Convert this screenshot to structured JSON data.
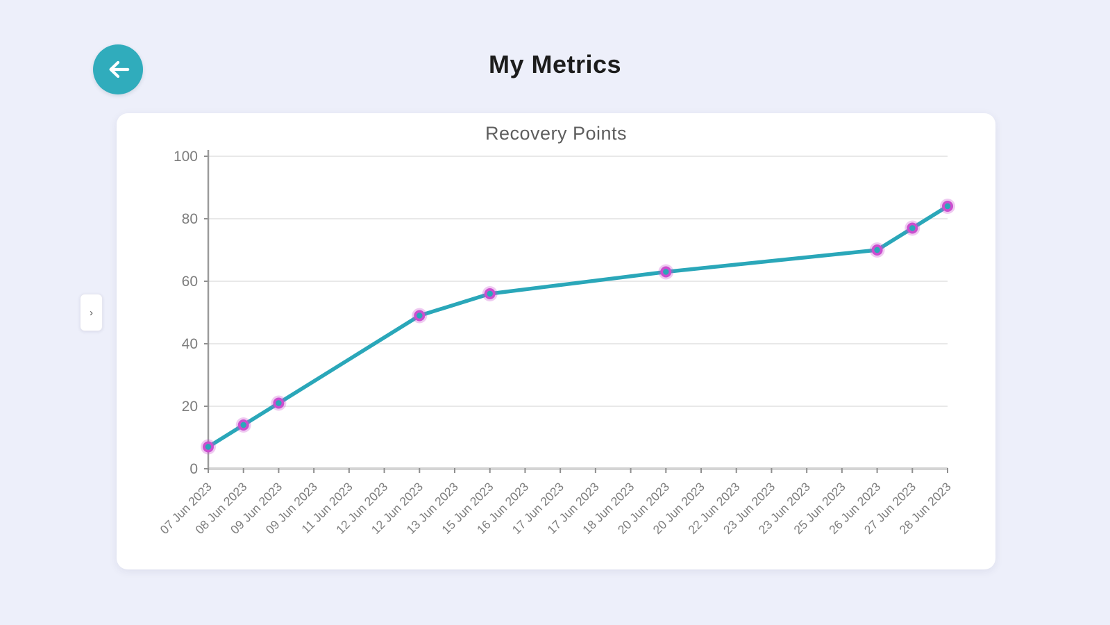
{
  "header": {
    "title": "My Metrics",
    "back_button": {
      "icon": "arrow-left-icon"
    }
  },
  "side_panel_toggle": {
    "glyph": "›",
    "icon": "chevron-right-icon"
  },
  "colors": {
    "background": "#edeffa",
    "card": "#ffffff",
    "accent_teal": "#30acbc"
  },
  "chart_data": {
    "type": "line",
    "title": "Recovery Points",
    "categories": [
      "07 Jun 2023",
      "08 Jun 2023",
      "09 Jun 2023",
      "09 Jun 2023",
      "11 Jun 2023",
      "12 Jun 2023",
      "12 Jun 2023",
      "13 Jun 2023",
      "15 Jun 2023",
      "16 Jun 2023",
      "17 Jun 2023",
      "17 Jun 2023",
      "18 Jun 2023",
      "20 Jun 2023",
      "20 Jun 2023",
      "22 Jun 2023",
      "23 Jun 2023",
      "23 Jun 2023",
      "25 Jun 2023",
      "26 Jun 2023",
      "27 Jun 2023",
      "28 Jun 2023"
    ],
    "series": [
      {
        "name": "Recovery Points",
        "points": [
          {
            "category_index": 0,
            "label": "07 Jun 2023",
            "value": 7
          },
          {
            "category_index": 1,
            "label": "08 Jun 2023",
            "value": 14
          },
          {
            "category_index": 2,
            "label": "09 Jun 2023",
            "value": 21
          },
          {
            "category_index": 6,
            "label": "12 Jun 2023",
            "value": 49
          },
          {
            "category_index": 8,
            "label": "15 Jun 2023",
            "value": 56
          },
          {
            "category_index": 13,
            "label": "20 Jun 2023",
            "value": 63
          },
          {
            "category_index": 19,
            "label": "26 Jun 2023",
            "value": 70
          },
          {
            "category_index": 20,
            "label": "27 Jun 2023",
            "value": 77
          },
          {
            "category_index": 21,
            "label": "28 Jun 2023",
            "value": 84
          }
        ]
      }
    ],
    "ylim": [
      0,
      100
    ],
    "yticks": [
      0,
      20,
      40,
      60,
      80,
      100
    ],
    "grid": true,
    "x_label_rotation": -45,
    "legend": "none",
    "colors": {
      "line": "#2aa7b9",
      "marker_ring": "#cb4ecf",
      "marker_fill": "#2aa7b9",
      "grid": "#e8e8e8",
      "axis_y": "#9b9b9b",
      "axis_x": "#d4d4d4",
      "tick": "#8f8f8f",
      "tick_label": "#7d7d7d"
    }
  }
}
